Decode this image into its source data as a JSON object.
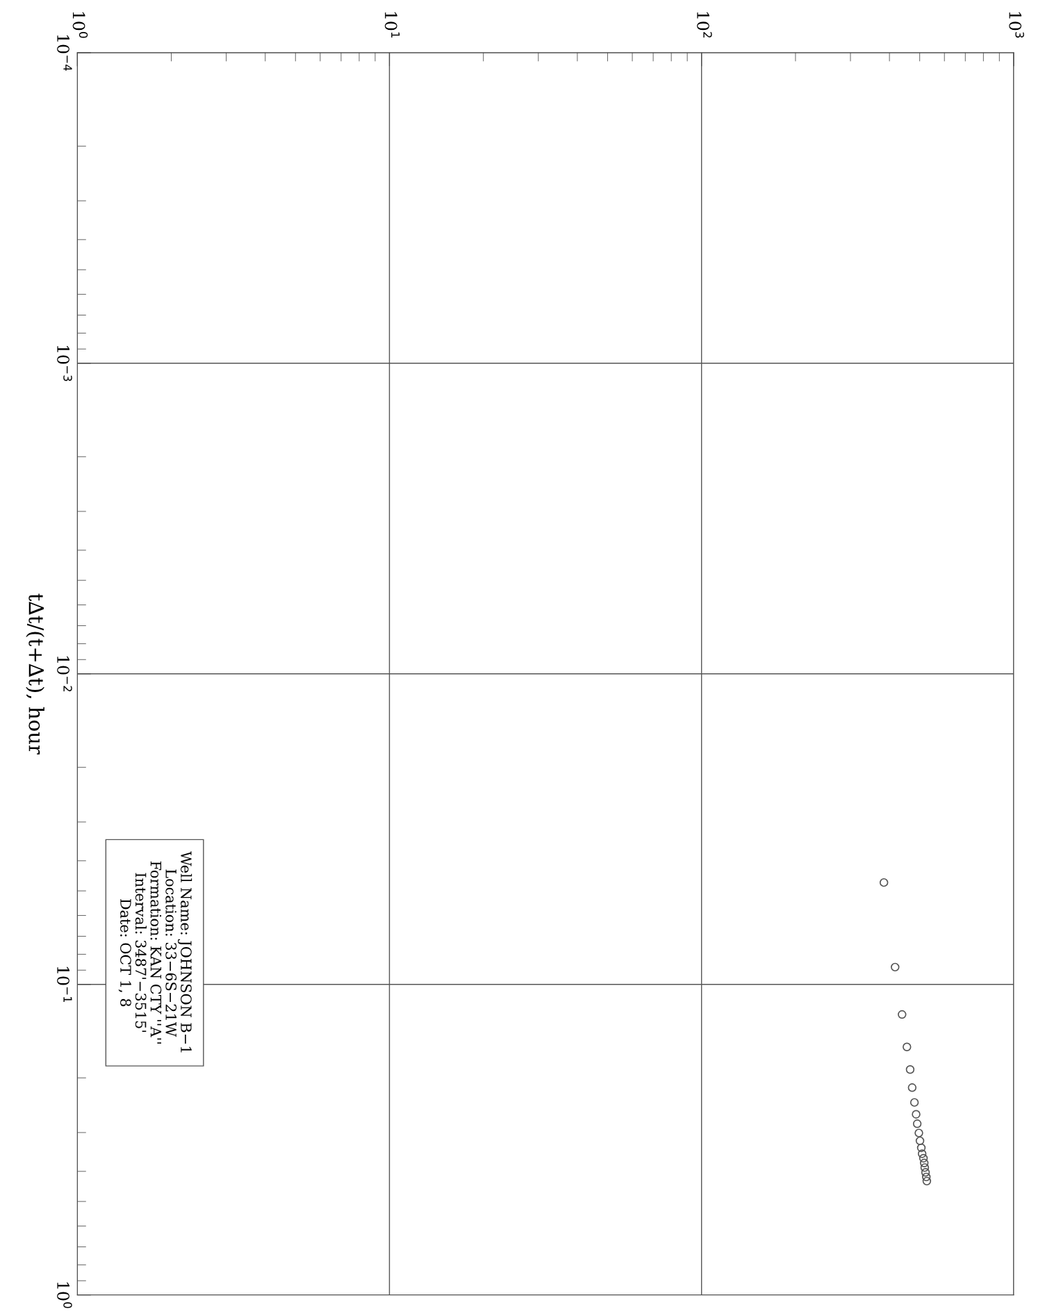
{
  "chart_data": {
    "type": "scatter",
    "ylabel": "t∆t/(t+∆t), hour",
    "x": [
      384,
      417,
      439,
      455,
      466,
      473,
      481,
      487,
      491,
      497,
      501,
      506,
      509,
      514,
      517,
      519,
      522,
      525,
      527
    ],
    "values": [
      0.047,
      0.088,
      0.125,
      0.159,
      0.188,
      0.215,
      0.24,
      0.262,
      0.281,
      0.301,
      0.319,
      0.336,
      0.351,
      0.363,
      0.376,
      0.389,
      0.403,
      0.417,
      0.43
    ],
    "color": "#555555",
    "marker": "circle",
    "grid": true,
    "xlim": [
      1,
      1000
    ],
    "xticks": [
      {
        "value": 1,
        "label": "10$^{0}$"
      },
      {
        "value": 10,
        "label": "10$^{1}$"
      },
      {
        "value": 100,
        "label": "10$^{2}$"
      },
      {
        "value": 1000,
        "label": "10$^{3}$"
      }
    ],
    "ylim": [
      1,
      0.0001
    ],
    "yticks": [
      {
        "value": 0.0001,
        "label": "10$^{−4}$"
      },
      {
        "value": 0.001,
        "label": "10$^{−3}$"
      },
      {
        "value": 0.01,
        "label": "10$^{−2}$"
      },
      {
        "value": 0.1,
        "label": "10$^{−1}$"
      },
      {
        "value": 1,
        "label": "10$^{0}$"
      }
    ],
    "log": "xy",
    "annotations": [
      "Well Name: JOHNSON B−1",
      "Location: 33−6S−21W",
      "Formation: KAN CTY ''A''",
      "Interval: 3487'−3515'",
      "Date: OCT 1, 8"
    ]
  }
}
